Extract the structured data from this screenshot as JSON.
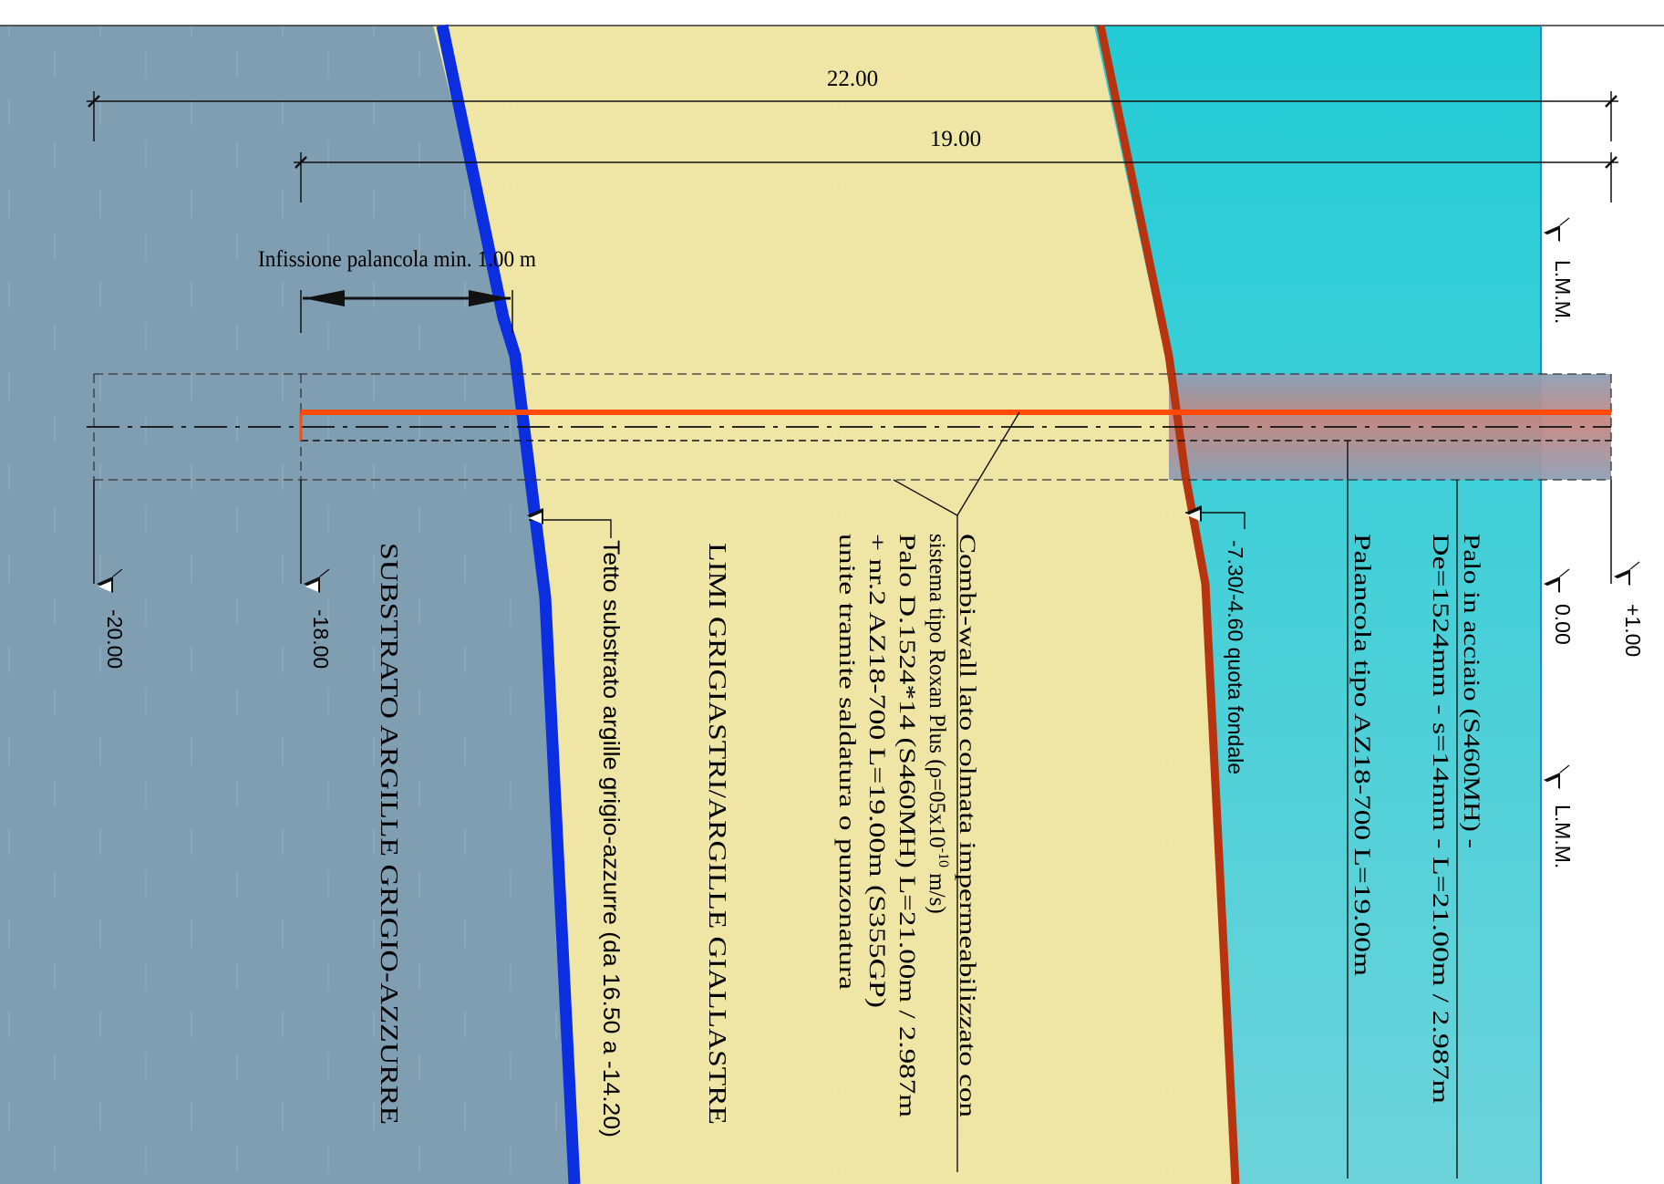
{
  "colors": {
    "substrate": "#7f9eb2",
    "silt": "#efe6a6",
    "water": "#33c8d0",
    "substrate_top_line": "#0a2ee0",
    "seabed_line": "#b83410",
    "combiwall_line": "#ff4a0a",
    "pile_band": "#c88a88"
  },
  "dimensions": {
    "overall": "22.00",
    "pile": "19.00",
    "embedment": "Infissione palancola min. 1.00 m"
  },
  "elevations": {
    "lmm_top": "L.M.M.",
    "lmm_bottom": "L.M.M.",
    "plus_one": "+1.00",
    "zero": "0.00",
    "minus_18": "-18.00",
    "minus_20": "-20.00",
    "seabed": "-7.30/-4.60 quota fondale"
  },
  "layers": {
    "substrate": "SUBSTRATO ARGILLE GRIGIO-AZZURRE",
    "silt": "LIMI GRIGIASTRI/ARGILLE GIALLASTRE",
    "substrate_top": "Tetto substrato argille grigio-azzurre (da 16.50 a -14.20)"
  },
  "notes": {
    "combiwall": {
      "line1": "Combi-wall lato colmata impermeabilizzato con",
      "line2_pre": "sistema tipo Roxan Plus (ρ=05x10",
      "line2_sup": "-10",
      "line2_post": " m/s)",
      "line3": "Palo D.1524*14 (S460MH) L=21.00m / 2.987m",
      "line4": "+ nr.2 AZ18-700 L=19.00m (S355GP)",
      "line5": "unite tramite saldatura o punzonatura"
    },
    "pile": {
      "line1": "Palo in acciaio (S460MH) -",
      "line2": "De=1524mm - s=14mm  - L=21.00m / 2.987m"
    },
    "sheet": "Palancola tipo AZ18-700 L=19.00m"
  }
}
